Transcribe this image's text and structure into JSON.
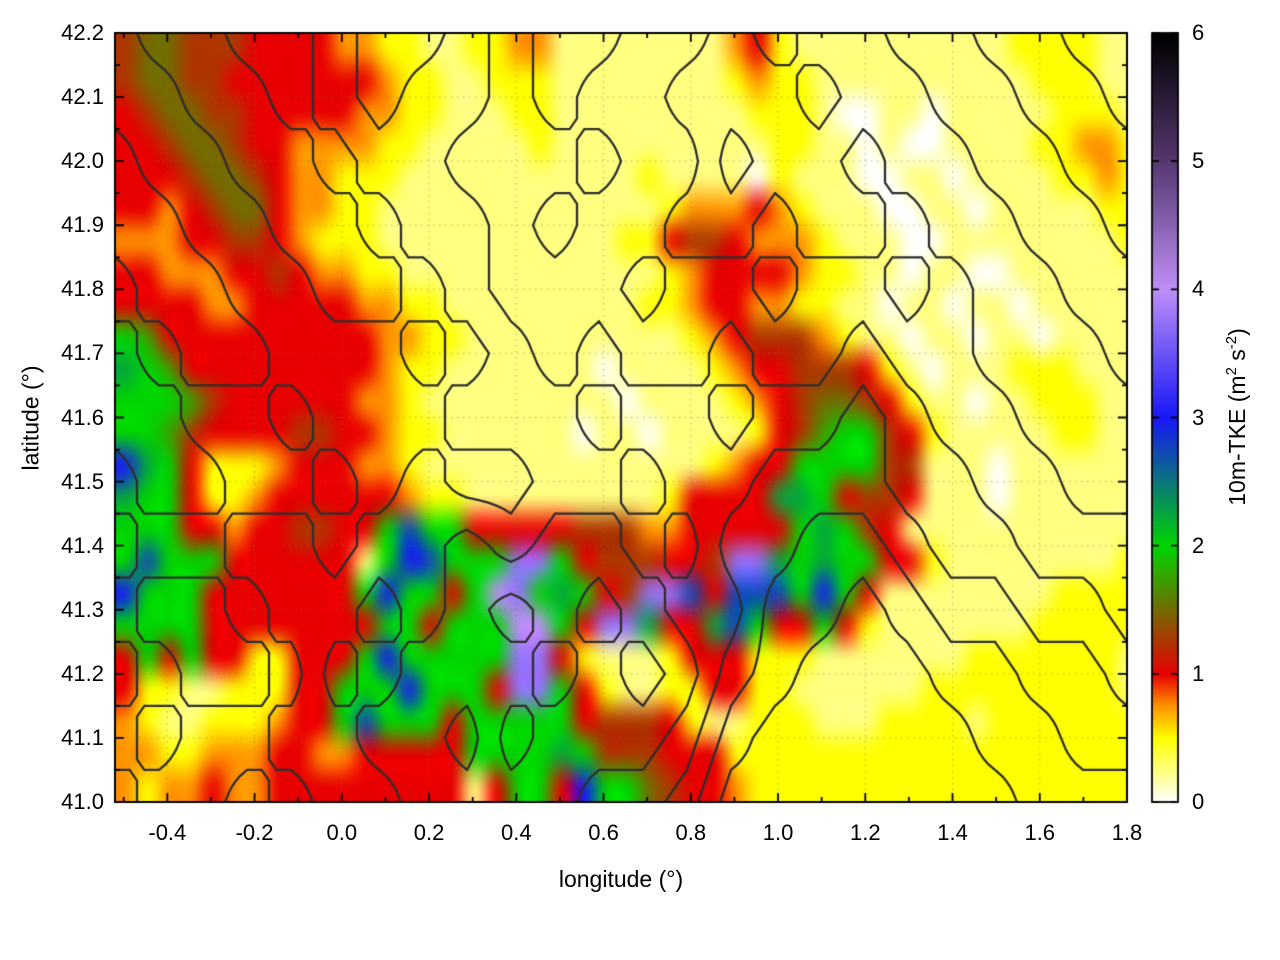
{
  "chart_data": {
    "type": "heatmap",
    "title": "",
    "xlabel": "longitude (°)",
    "ylabel": "latitude (°)",
    "x_range": [
      -0.52,
      1.8
    ],
    "y_range": [
      41.0,
      42.2
    ],
    "x_ticks": {
      "values": [
        -0.4,
        -0.2,
        0.0,
        0.2,
        0.4,
        0.6,
        0.8,
        1.0,
        1.2,
        1.4,
        1.6,
        1.8
      ],
      "labels": [
        "-0.4",
        "-0.2",
        "0.0",
        "0.2",
        "0.4",
        "0.6",
        "0.8",
        "1.0",
        "1.2",
        "1.4",
        "1.6",
        "1.8"
      ],
      "minor_step": 0.1
    },
    "y_ticks": {
      "values": [
        41.0,
        41.1,
        41.2,
        41.3,
        41.4,
        41.5,
        41.6,
        41.7,
        41.8,
        41.9,
        42.0,
        42.1,
        42.2
      ],
      "labels": [
        "41.0",
        "41.1",
        "41.2",
        "41.3",
        "41.4",
        "41.5",
        "41.6",
        "41.7",
        "41.8",
        "41.9",
        "42.0",
        "42.1",
        "42.2"
      ],
      "minor_step": 0.05
    },
    "grid_lines": {
      "x_step": 0.2,
      "y_step": 0.1,
      "color": "rgba(120,120,90,0.55)"
    },
    "colorbar": {
      "range": [
        0,
        6
      ],
      "tick_values": [
        0,
        1,
        2,
        3,
        4,
        5,
        6
      ],
      "tick_labels": [
        "0",
        "1",
        "2",
        "3",
        "4",
        "5",
        "6"
      ],
      "label_parts": {
        "pre": "10m-TKE (m",
        "sup1": "2",
        "mid": " s",
        "sup2": "-2",
        "post": ")"
      }
    },
    "palette_stops": [
      [
        0.0,
        255,
        255,
        255
      ],
      [
        0.5,
        255,
        255,
        0
      ],
      [
        0.75,
        255,
        148,
        0
      ],
      [
        1.0,
        232,
        0,
        0
      ],
      [
        2.0,
        0,
        214,
        0
      ],
      [
        3.0,
        24,
        24,
        248
      ],
      [
        4.0,
        190,
        144,
        246
      ],
      [
        5.0,
        86,
        56,
        112
      ],
      [
        6.0,
        0,
        0,
        0
      ]
    ],
    "heatmap": {
      "cell_deg": 0.05,
      "origin": [
        -0.52,
        42.2
      ],
      "alphabet": "0123456789ABCDEFGH",
      "unit_per_char": 0.25,
      "rows": [
        "56655544443322112233111111113421111111111222211",
        "56655444444432211222111111112322111111111122211",
        "45665544444332211122111111111222100110111112221",
        "44566544333322111112111111111122110100111122332",
        "44456654332221111111111121111021110011011112232",
        "44345664332211111111111112333432111001101111122",
        "33344554322211111111111224554333211100111111112",
        "44333445433221111111111112344443221101100111111",
        "44443344444332211111111122344332211011011011111",
        "87444444444433221111111111234555321101101101111",
        "98744444444432211111110111123445554210111222111",
        "88875444444332111111111011112345665421101122211",
        "88754444554432211111101101111245788542111112211",
        "C9842223444332111111111111123448888551110111111",
        "98842234444443221111111112444499845541110111111",
        "8884434455448B884444455533444448985411111111111",
        "8B888444444 8CB888FF84555445FF989884421111111122",
        "C88844444448C8848GF89845FFB4BBB8C84111111112222",
        "888844444444884888GG84FF9449B844842111111122222",
        "484844224448C88888FF42111244422211111112222222 ",
        "4221122244888C8884FF84211224422111111222222222 ",
        "32112223448B888488888455542112221112222 2222222",
        "33223334433444448888985554442222222222222222222",
        "3233433444444444 4884C8865443222222222222222222"
      ]
    },
    "contours": {
      "levels": [
        2.5,
        3.5,
        4.5,
        5.5,
        6.5,
        7.5
      ],
      "color": "#2e2e2e",
      "line_width": 2.3,
      "cell_deg": 0.1,
      "rows": [
        "455445665677667877887788",
        "445545655676677787788778",
        "544554556667668776778877",
        "554455455676677677677887",
        "455445545666766766767788",
        "545544454565665665667778",
        "554454445556556554566777",
        "455445454455655444556677",
        "544554556566564433455666",
        "455455656767655332344556",
        "545546566676764322233445",
        "454455665766653221223344",
        "544545566665542211122333"
      ]
    }
  }
}
